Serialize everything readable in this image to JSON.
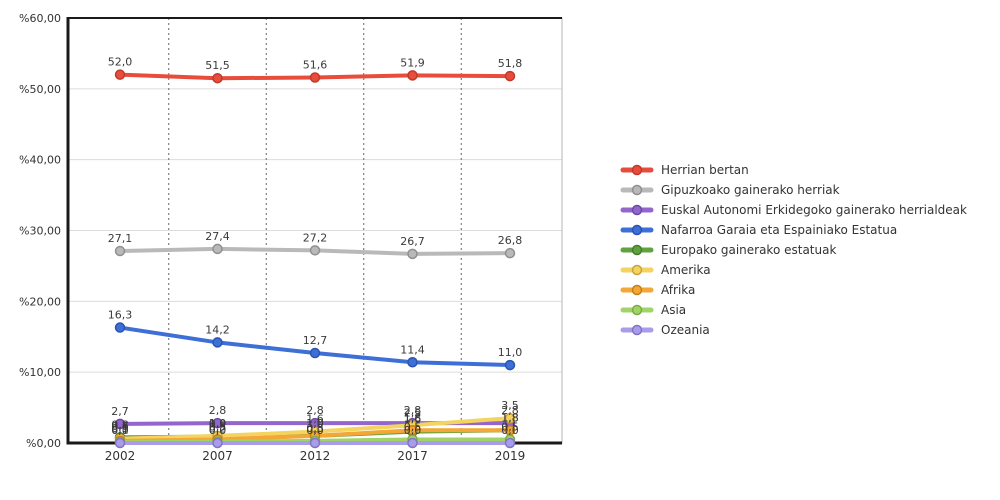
{
  "chart_data": {
    "type": "line",
    "categories": [
      "2002",
      "2007",
      "2012",
      "2017",
      "2019"
    ],
    "ylim": [
      0,
      60
    ],
    "yticks": [
      0,
      10,
      20,
      30,
      40,
      50,
      60
    ],
    "ytick_labels": [
      "%0,00",
      "%10,00",
      "%20,00",
      "%30,00",
      "%40,00",
      "%50,00",
      "%60,00"
    ],
    "grid": true,
    "legend_position": "right",
    "decimal_separator": ",",
    "series": [
      {
        "name": "Herrian bertan",
        "color": "#e74c3c",
        "edge": "#c0392b",
        "values": [
          52.0,
          51.5,
          51.6,
          51.9,
          51.8
        ]
      },
      {
        "name": "Gipuzkoako gainerako herriak",
        "color": "#b9b9b9",
        "edge": "#909090",
        "values": [
          27.1,
          27.4,
          27.2,
          26.7,
          26.8
        ]
      },
      {
        "name": "Euskal Autonomi Erkidegoko gainerako herrialdeak",
        "color": "#9266cc",
        "edge": "#6d49a3",
        "values": [
          2.7,
          2.8,
          2.8,
          2.8,
          2.8
        ]
      },
      {
        "name": "Nafarroa Garaia eta Espainiako Estatua",
        "color": "#3d6fd7",
        "edge": "#2a54ae",
        "values": [
          16.3,
          14.2,
          12.7,
          11.4,
          11.0
        ]
      },
      {
        "name": "Europako gainerako estatuak",
        "color": "#5fa23e",
        "edge": "#477c2b",
        "values": [
          0.8,
          0.9,
          1.0,
          1.6,
          1.8
        ]
      },
      {
        "name": "Amerika",
        "color": "#f4d35e",
        "edge": "#c8a63e",
        "values": [
          0.6,
          1.0,
          1.6,
          2.5,
          3.5
        ]
      },
      {
        "name": "Afrika",
        "color": "#f4a636",
        "edge": "#c57f17",
        "values": [
          0.3,
          0.5,
          1.0,
          1.8,
          1.8
        ]
      },
      {
        "name": "Asia",
        "color": "#a0d468",
        "edge": "#7cab46",
        "values": [
          0.1,
          0.2,
          0.3,
          0.5,
          0.5
        ]
      },
      {
        "name": "Ozeania",
        "color": "#a99de9",
        "edge": "#8274c4",
        "values": [
          0.0,
          0.0,
          0.0,
          0.0,
          0.0
        ]
      }
    ]
  }
}
